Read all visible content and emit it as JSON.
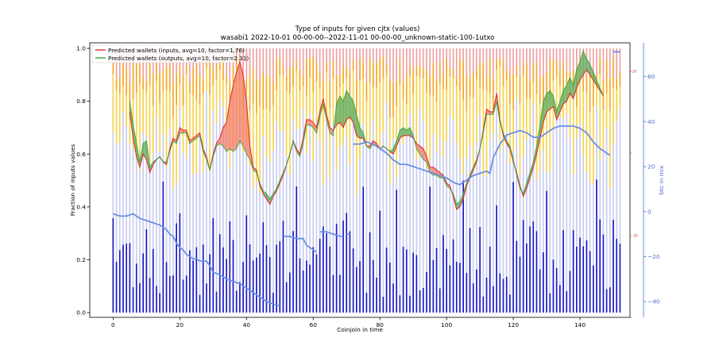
{
  "chart_data": {
    "type": "bar",
    "title": "Type of inputs for given cjtx (values)",
    "subtitle": "wasabi1 2022-10-01 00-00-00--2022-11-01 00-00-00_unknown-static-100-1utxo",
    "xlabel": "Coinjoin in time",
    "ylabel": "Fraction of inputs values",
    "y2label": "btc in mix",
    "xlim": [
      -7,
      155
    ],
    "ylim": [
      0,
      1.0
    ],
    "y2lim": [
      -47,
      75
    ],
    "x_ticks": [
      "0",
      "20",
      "40",
      "60",
      "80",
      "100",
      "120",
      "140"
    ],
    "y_ticks": [
      "0.0",
      "0.2",
      "0.4",
      "0.6",
      "0.8",
      "1.0"
    ],
    "y2_ticks": [
      "−40",
      "−20",
      "0",
      "20",
      "40",
      "60"
    ],
    "y3_ticks": [
      "",
      "-20",
      "",
      "20",
      "40"
    ],
    "legend": {
      "position": "top-left",
      "entries": [
        "Predicted wallets (inputs, avg=10, factor=1.76)",
        "Predicted wallets (outputs, avg=10, factor=2.31)"
      ]
    },
    "colors": {
      "base_bar": "#1919c8",
      "light_bar": "#c8cdf0",
      "yellow_bar": "#f7d24a",
      "orange_bar": "#f5a623",
      "pink_bar": "#f0a0a0",
      "inputs_line": "#e03030",
      "outputs_line": "#33a633",
      "fill_up": "#f37b6b",
      "fill_down": "#5aa85a",
      "btc_line": "#6b8fe5"
    },
    "predicted_inputs": [
      [
        5,
        0.76
      ],
      [
        6,
        0.66
      ],
      [
        7,
        0.59
      ],
      [
        8,
        0.55
      ],
      [
        9,
        0.6
      ],
      [
        10,
        0.58
      ],
      [
        11,
        0.53
      ],
      [
        12,
        0.56
      ],
      [
        13,
        0.58
      ],
      [
        14,
        0.59
      ],
      [
        15,
        0.57
      ],
      [
        16,
        0.56
      ],
      [
        17,
        0.62
      ],
      [
        18,
        0.66
      ],
      [
        19,
        0.65
      ],
      [
        20,
        0.7
      ],
      [
        21,
        0.69
      ],
      [
        22,
        0.69
      ],
      [
        23,
        0.65
      ],
      [
        24,
        0.66
      ],
      [
        25,
        0.67
      ],
      [
        26,
        0.68
      ],
      [
        27,
        0.62
      ],
      [
        28,
        0.59
      ],
      [
        29,
        0.54
      ],
      [
        30,
        0.6
      ],
      [
        31,
        0.64
      ],
      [
        32,
        0.66
      ],
      [
        33,
        0.7
      ],
      [
        34,
        0.72
      ],
      [
        35,
        0.8
      ],
      [
        36,
        0.86
      ],
      [
        37,
        0.91
      ],
      [
        38,
        0.95
      ],
      [
        39,
        0.9
      ],
      [
        40,
        0.8
      ],
      [
        41,
        0.63
      ],
      [
        42,
        0.55
      ],
      [
        43,
        0.54
      ],
      [
        44,
        0.48
      ],
      [
        45,
        0.45
      ],
      [
        46,
        0.43
      ],
      [
        47,
        0.41
      ],
      [
        48,
        0.44
      ],
      [
        49,
        0.46
      ],
      [
        50,
        0.49
      ],
      [
        51,
        0.52
      ],
      [
        52,
        0.56
      ],
      [
        53,
        0.6
      ],
      [
        54,
        0.65
      ],
      [
        55,
        0.62
      ],
      [
        56,
        0.6
      ],
      [
        57,
        0.66
      ],
      [
        58,
        0.73
      ],
      [
        59,
        0.73
      ],
      [
        60,
        0.72
      ],
      [
        61,
        0.7
      ],
      [
        62,
        0.76
      ],
      [
        63,
        0.81
      ],
      [
        64,
        0.75
      ],
      [
        65,
        0.7
      ],
      [
        66,
        0.69
      ],
      [
        67,
        0.71
      ],
      [
        68,
        0.72
      ],
      [
        69,
        0.7
      ],
      [
        70,
        0.73
      ],
      [
        71,
        0.74
      ],
      [
        72,
        0.72
      ],
      [
        73,
        0.67
      ],
      [
        74,
        0.66
      ],
      [
        75,
        0.66
      ],
      [
        76,
        0.63
      ],
      [
        77,
        0.63
      ],
      [
        78,
        0.65
      ],
      [
        79,
        0.64
      ],
      [
        80,
        0.62
      ],
      [
        81,
        0.63
      ],
      [
        82,
        0.62
      ],
      [
        83,
        0.61
      ],
      [
        84,
        0.6
      ],
      [
        85,
        0.63
      ],
      [
        86,
        0.66
      ],
      [
        87,
        0.67
      ],
      [
        88,
        0.67
      ],
      [
        89,
        0.67
      ],
      [
        90,
        0.66
      ],
      [
        91,
        0.64
      ],
      [
        92,
        0.63
      ],
      [
        93,
        0.62
      ],
      [
        94,
        0.59
      ],
      [
        95,
        0.55
      ],
      [
        96,
        0.55
      ],
      [
        97,
        0.54
      ],
      [
        98,
        0.53
      ],
      [
        99,
        0.52
      ],
      [
        100,
        0.49
      ],
      [
        101,
        0.48
      ],
      [
        102,
        0.44
      ],
      [
        103,
        0.39
      ],
      [
        104,
        0.4
      ],
      [
        105,
        0.43
      ],
      [
        106,
        0.48
      ],
      [
        107,
        0.51
      ],
      [
        108,
        0.54
      ],
      [
        109,
        0.57
      ],
      [
        110,
        0.62
      ],
      [
        111,
        0.69
      ],
      [
        112,
        0.77
      ],
      [
        113,
        0.76
      ],
      [
        114,
        0.76
      ],
      [
        115,
        0.83
      ],
      [
        116,
        0.73
      ],
      [
        117,
        0.67
      ],
      [
        118,
        0.64
      ],
      [
        119,
        0.62
      ],
      [
        120,
        0.57
      ],
      [
        121,
        0.53
      ],
      [
        122,
        0.48
      ],
      [
        123,
        0.44
      ],
      [
        124,
        0.47
      ],
      [
        125,
        0.51
      ],
      [
        126,
        0.55
      ],
      [
        127,
        0.6
      ],
      [
        128,
        0.66
      ],
      [
        129,
        0.72
      ],
      [
        130,
        0.76
      ],
      [
        131,
        0.77
      ],
      [
        132,
        0.78
      ],
      [
        133,
        0.73
      ],
      [
        134,
        0.76
      ],
      [
        135,
        0.79
      ],
      [
        136,
        0.8
      ],
      [
        137,
        0.83
      ],
      [
        138,
        0.81
      ],
      [
        139,
        0.85
      ],
      [
        140,
        0.88
      ],
      [
        141,
        0.9
      ],
      [
        142,
        0.92
      ],
      [
        143,
        0.9
      ],
      [
        144,
        0.88
      ],
      [
        145,
        0.86
      ],
      [
        146,
        0.84
      ],
      [
        147,
        0.82
      ]
    ],
    "predicted_outputs": [
      [
        5,
        0.8
      ],
      [
        6,
        0.71
      ],
      [
        7,
        0.64
      ],
      [
        8,
        0.57
      ],
      [
        9,
        0.64
      ],
      [
        10,
        0.65
      ],
      [
        11,
        0.55
      ],
      [
        12,
        0.57
      ],
      [
        13,
        0.58
      ],
      [
        14,
        0.59
      ],
      [
        15,
        0.57
      ],
      [
        16,
        0.57
      ],
      [
        17,
        0.61
      ],
      [
        18,
        0.65
      ],
      [
        19,
        0.64
      ],
      [
        20,
        0.68
      ],
      [
        21,
        0.68
      ],
      [
        22,
        0.68
      ],
      [
        23,
        0.64
      ],
      [
        24,
        0.65
      ],
      [
        25,
        0.66
      ],
      [
        26,
        0.67
      ],
      [
        27,
        0.61
      ],
      [
        28,
        0.58
      ],
      [
        29,
        0.54
      ],
      [
        30,
        0.59
      ],
      [
        31,
        0.63
      ],
      [
        32,
        0.64
      ],
      [
        33,
        0.63
      ],
      [
        34,
        0.61
      ],
      [
        35,
        0.62
      ],
      [
        36,
        0.61
      ],
      [
        37,
        0.62
      ],
      [
        38,
        0.65
      ],
      [
        39,
        0.63
      ],
      [
        40,
        0.6
      ],
      [
        41,
        0.58
      ],
      [
        42,
        0.54
      ],
      [
        43,
        0.53
      ],
      [
        44,
        0.49
      ],
      [
        45,
        0.46
      ],
      [
        46,
        0.45
      ],
      [
        47,
        0.43
      ],
      [
        48,
        0.45
      ],
      [
        49,
        0.47
      ],
      [
        50,
        0.5
      ],
      [
        51,
        0.53
      ],
      [
        52,
        0.56
      ],
      [
        53,
        0.6
      ],
      [
        54,
        0.65
      ],
      [
        55,
        0.61
      ],
      [
        56,
        0.59
      ],
      [
        57,
        0.64
      ],
      [
        58,
        0.71
      ],
      [
        59,
        0.71
      ],
      [
        60,
        0.7
      ],
      [
        61,
        0.68
      ],
      [
        62,
        0.74
      ],
      [
        63,
        0.79
      ],
      [
        64,
        0.73
      ],
      [
        65,
        0.68
      ],
      [
        66,
        0.67
      ],
      [
        67,
        0.79
      ],
      [
        68,
        0.82
      ],
      [
        69,
        0.8
      ],
      [
        70,
        0.84
      ],
      [
        71,
        0.82
      ],
      [
        72,
        0.8
      ],
      [
        73,
        0.75
      ],
      [
        74,
        0.7
      ],
      [
        75,
        0.68
      ],
      [
        76,
        0.63
      ],
      [
        77,
        0.62
      ],
      [
        78,
        0.64
      ],
      [
        79,
        0.63
      ],
      [
        80,
        0.62
      ],
      [
        81,
        0.63
      ],
      [
        82,
        0.62
      ],
      [
        83,
        0.61
      ],
      [
        84,
        0.62
      ],
      [
        85,
        0.65
      ],
      [
        86,
        0.69
      ],
      [
        87,
        0.7
      ],
      [
        88,
        0.69
      ],
      [
        89,
        0.7
      ],
      [
        90,
        0.67
      ],
      [
        91,
        0.62
      ],
      [
        92,
        0.6
      ],
      [
        93,
        0.58
      ],
      [
        94,
        0.57
      ],
      [
        95,
        0.53
      ],
      [
        96,
        0.52
      ],
      [
        97,
        0.52
      ],
      [
        98,
        0.51
      ],
      [
        99,
        0.51
      ],
      [
        100,
        0.48
      ],
      [
        101,
        0.47
      ],
      [
        102,
        0.45
      ],
      [
        103,
        0.41
      ],
      [
        104,
        0.42
      ],
      [
        105,
        0.45
      ],
      [
        106,
        0.49
      ],
      [
        107,
        0.52
      ],
      [
        108,
        0.55
      ],
      [
        109,
        0.58
      ],
      [
        110,
        0.62
      ],
      [
        111,
        0.68
      ],
      [
        112,
        0.75
      ],
      [
        113,
        0.75
      ],
      [
        114,
        0.75
      ],
      [
        115,
        0.8
      ],
      [
        116,
        0.72
      ],
      [
        117,
        0.68
      ],
      [
        118,
        0.65
      ],
      [
        119,
        0.63
      ],
      [
        120,
        0.58
      ],
      [
        121,
        0.52
      ],
      [
        122,
        0.47
      ],
      [
        123,
        0.45
      ],
      [
        124,
        0.49
      ],
      [
        125,
        0.53
      ],
      [
        126,
        0.57
      ],
      [
        127,
        0.63
      ],
      [
        128,
        0.71
      ],
      [
        129,
        0.8
      ],
      [
        130,
        0.83
      ],
      [
        131,
        0.84
      ],
      [
        132,
        0.82
      ],
      [
        133,
        0.76
      ],
      [
        134,
        0.8
      ],
      [
        135,
        0.84
      ],
      [
        136,
        0.86
      ],
      [
        137,
        0.89
      ],
      [
        138,
        0.86
      ],
      [
        139,
        0.92
      ],
      [
        140,
        0.95
      ],
      [
        141,
        0.99
      ],
      [
        142,
        0.96
      ],
      [
        143,
        0.94
      ],
      [
        144,
        0.91
      ],
      [
        145,
        0.88
      ],
      [
        146,
        0.85
      ],
      [
        147,
        0.82
      ]
    ],
    "btc_in_mix": [
      [
        0,
        -1
      ],
      [
        2,
        -2
      ],
      [
        4,
        -2
      ],
      [
        6,
        -1
      ],
      [
        8,
        -3
      ],
      [
        10,
        -4
      ],
      [
        12,
        -5
      ],
      [
        14,
        -6
      ],
      [
        16,
        -8
      ],
      [
        17,
        -10
      ],
      [
        18,
        -11
      ],
      [
        19,
        -14
      ],
      [
        20,
        -16
      ],
      [
        21,
        -17
      ],
      [
        22,
        -19
      ],
      [
        23,
        -20
      ],
      [
        24,
        -21
      ],
      [
        25,
        -21
      ],
      [
        26,
        -22
      ],
      [
        28,
        -22
      ],
      [
        29,
        -24
      ],
      [
        30,
        -27
      ],
      [
        32,
        -28
      ],
      [
        34,
        -30
      ],
      [
        36,
        -31
      ],
      [
        38,
        -32
      ],
      [
        40,
        -34
      ],
      [
        42,
        -36
      ],
      [
        44,
        -38
      ],
      [
        46,
        -40
      ],
      [
        48,
        -41
      ],
      [
        50,
        -42
      ],
      [
        51,
        null
      ],
      [
        51,
        -11
      ],
      [
        53,
        -11
      ],
      [
        55,
        -12
      ],
      [
        57,
        -12
      ],
      [
        58,
        -15
      ],
      [
        60,
        -17
      ],
      [
        61,
        -18
      ],
      [
        62,
        null
      ],
      [
        62,
        -9
      ],
      [
        64,
        -9
      ],
      [
        66,
        -10
      ],
      [
        68,
        -11
      ],
      [
        69,
        -11
      ],
      [
        70,
        null
      ],
      [
        70,
        -10
      ],
      [
        71,
        -10
      ],
      [
        72,
        null
      ],
      [
        72,
        30
      ],
      [
        74,
        30
      ],
      [
        76,
        31
      ],
      [
        78,
        30
      ],
      [
        80,
        28
      ],
      [
        82,
        26
      ],
      [
        84,
        23
      ],
      [
        86,
        21
      ],
      [
        88,
        21
      ],
      [
        90,
        20
      ],
      [
        92,
        19
      ],
      [
        94,
        18
      ],
      [
        96,
        17
      ],
      [
        98,
        16
      ],
      [
        100,
        15
      ],
      [
        102,
        13
      ],
      [
        104,
        12
      ],
      [
        106,
        14
      ],
      [
        108,
        16
      ],
      [
        110,
        17
      ],
      [
        112,
        18
      ],
      [
        113,
        17
      ],
      [
        114,
        24
      ],
      [
        116,
        30
      ],
      [
        118,
        34
      ],
      [
        120,
        35
      ],
      [
        122,
        36
      ],
      [
        124,
        35
      ],
      [
        126,
        33
      ],
      [
        128,
        33
      ],
      [
        130,
        35
      ],
      [
        132,
        37
      ],
      [
        134,
        38
      ],
      [
        136,
        38
      ],
      [
        138,
        38
      ],
      [
        140,
        37
      ],
      [
        142,
        35
      ],
      [
        144,
        31
      ],
      [
        146,
        28
      ],
      [
        148,
        26
      ],
      [
        149,
        25
      ],
      [
        150,
        null
      ],
      [
        150,
        71
      ],
      [
        152,
        71
      ]
    ]
  }
}
